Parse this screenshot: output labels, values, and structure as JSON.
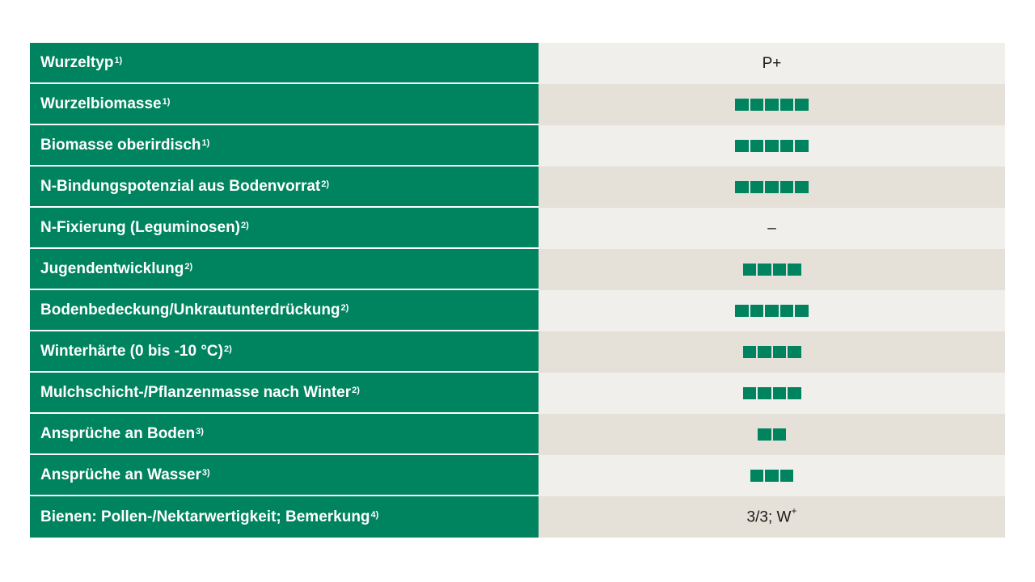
{
  "colors": {
    "label_bg": "#00845f",
    "rating_square": "#00845f",
    "row_light": "#f0efeb",
    "row_dark": "#e5e0d8"
  },
  "rows": [
    {
      "label": "Wurzeltyp",
      "note": "1)",
      "value_type": "text",
      "value": "P+",
      "value_sup": ""
    },
    {
      "label": "Wurzelbiomasse",
      "note": "1)",
      "value_type": "rating",
      "rating": 5
    },
    {
      "label": "Biomasse oberirdisch",
      "note": "1)",
      "value_type": "rating",
      "rating": 5
    },
    {
      "label": "N-Bindungspotenzial aus Bodenvorrat",
      "note": "2)",
      "value_type": "rating",
      "rating": 5
    },
    {
      "label": "N-Fixierung (Leguminosen)",
      "note": "2)",
      "value_type": "text",
      "value": "–",
      "value_sup": ""
    },
    {
      "label": "Jugendentwicklung",
      "note": "2)",
      "value_type": "rating",
      "rating": 4
    },
    {
      "label": "Bodenbedeckung/Unkrautunterdrückung",
      "note": "2)",
      "value_type": "rating",
      "rating": 5
    },
    {
      "label": "Winterhärte (0 bis -10 °C)",
      "note": "2)",
      "value_type": "rating",
      "rating": 4
    },
    {
      "label": "Mulchschicht-/Pflanzenmasse nach Winter",
      "note": "2)",
      "value_type": "rating",
      "rating": 4
    },
    {
      "label": "Ansprüche an Boden",
      "note": "3)",
      "value_type": "rating",
      "rating": 2
    },
    {
      "label": "Ansprüche an Wasser",
      "note": "3)",
      "value_type": "rating",
      "rating": 3
    },
    {
      "label": "Bienen: Pollen-/Nektarwertigkeit; Bemerkung",
      "note": "4)",
      "value_type": "text",
      "value": "3/3; W",
      "value_sup": "+"
    }
  ]
}
